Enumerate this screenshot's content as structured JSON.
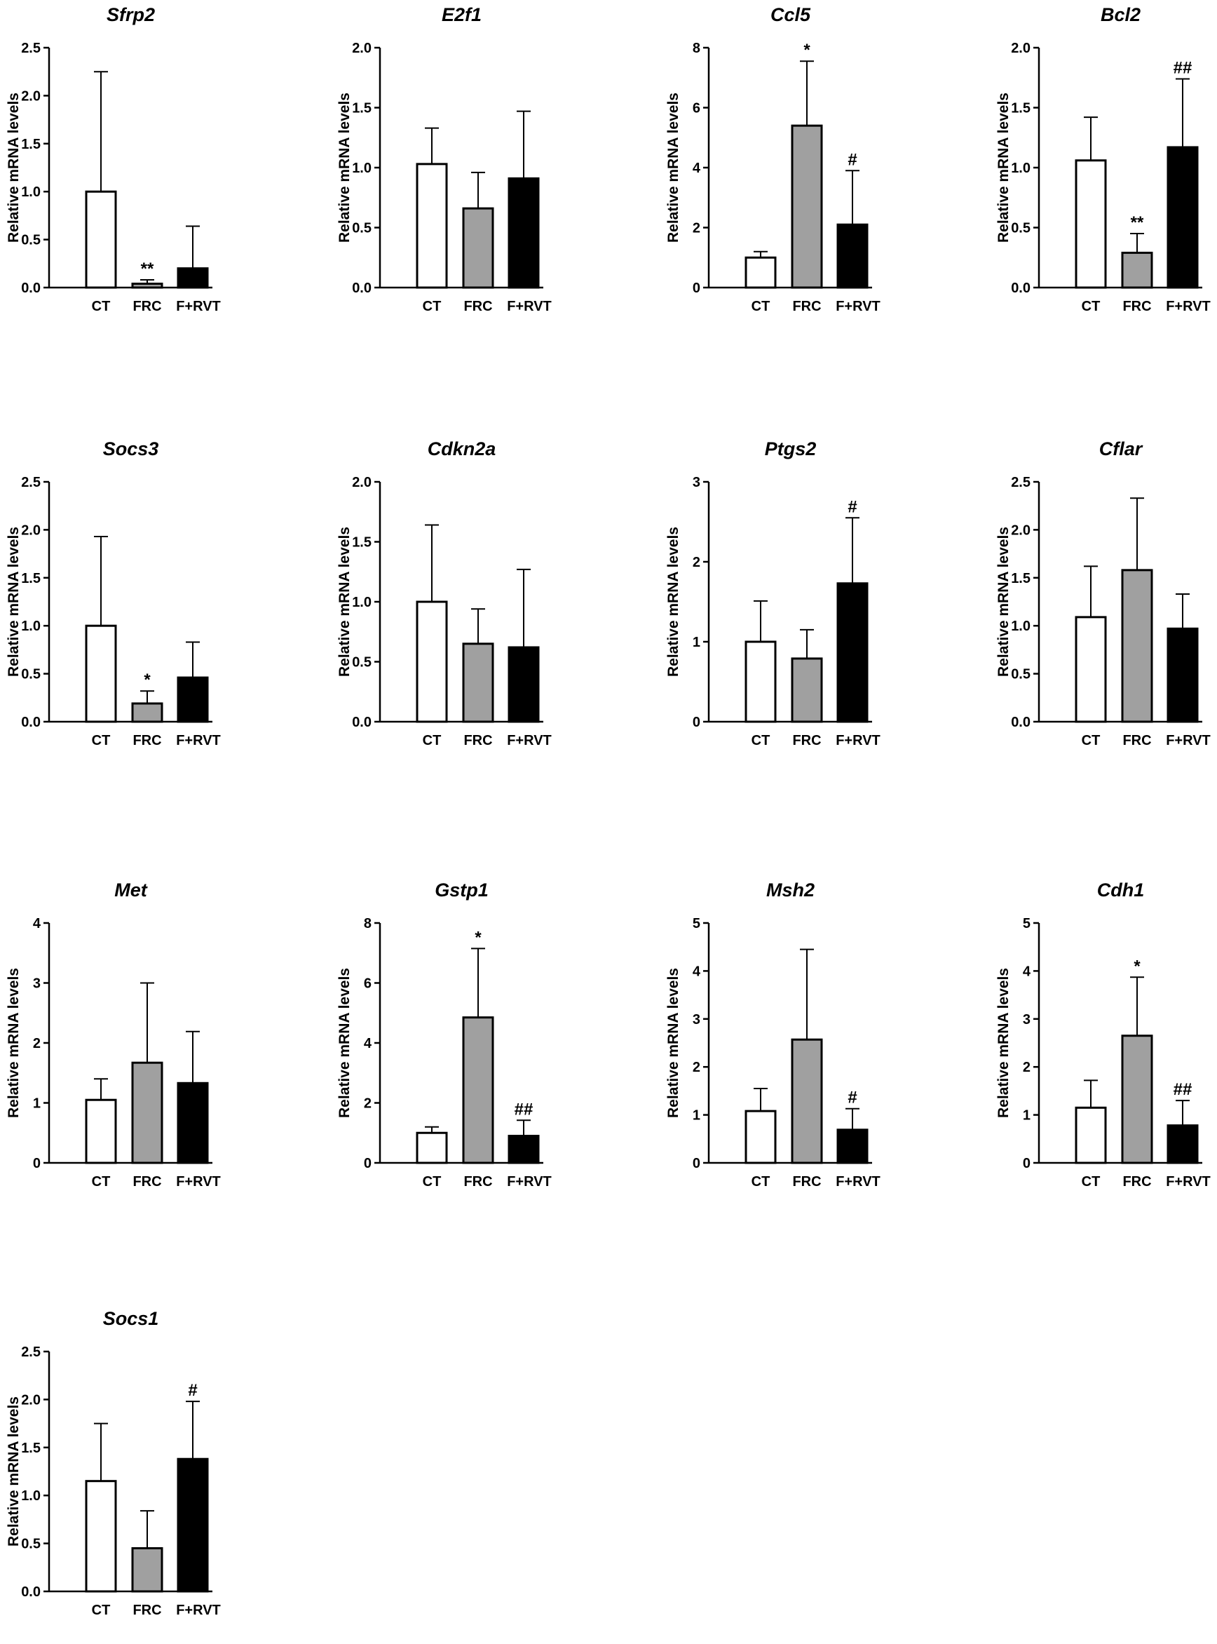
{
  "chart_data": [
    {
      "type": "bar",
      "title": "Sfrp2",
      "ylabel": "Relative mRNA levels",
      "categories": [
        "CT",
        "FRC",
        "F+RVT"
      ],
      "values": [
        1.0,
        0.04,
        0.2
      ],
      "error_upper": [
        2.25,
        0.08,
        0.64
      ],
      "annotations": [
        "",
        "**",
        ""
      ],
      "ylim": [
        0,
        2.5
      ],
      "yticks": [
        "0.0",
        "0.5",
        "1.0",
        "1.5",
        "2.0",
        "2.5"
      ],
      "colors": [
        "#ffffff",
        "#a0a0a0",
        "#000000"
      ]
    },
    {
      "type": "bar",
      "title": "E2f1",
      "ylabel": "Relative mRNA levels",
      "categories": [
        "CT",
        "FRC",
        "F+RVT"
      ],
      "values": [
        1.03,
        0.66,
        0.91
      ],
      "error_upper": [
        1.33,
        0.96,
        1.47
      ],
      "annotations": [
        "",
        "",
        ""
      ],
      "ylim": [
        0,
        2.0
      ],
      "yticks": [
        "0.0",
        "0.5",
        "1.0",
        "1.5",
        "2.0"
      ],
      "colors": [
        "#ffffff",
        "#a0a0a0",
        "#000000"
      ]
    },
    {
      "type": "bar",
      "title": "Ccl5",
      "ylabel": "Relative mRNA levels",
      "categories": [
        "CT",
        "FRC",
        "F+RVT"
      ],
      "values": [
        1.0,
        5.4,
        2.1
      ],
      "error_upper": [
        1.2,
        7.55,
        3.9
      ],
      "annotations": [
        "",
        "*",
        "#"
      ],
      "ylim": [
        0,
        8
      ],
      "yticks": [
        "0",
        "2",
        "4",
        "6",
        "8"
      ],
      "colors": [
        "#ffffff",
        "#a0a0a0",
        "#000000"
      ]
    },
    {
      "type": "bar",
      "title": "Bcl2",
      "ylabel": "Relative mRNA levels",
      "categories": [
        "CT",
        "FRC",
        "F+RVT"
      ],
      "values": [
        1.06,
        0.29,
        1.17
      ],
      "error_upper": [
        1.42,
        0.45,
        1.74
      ],
      "annotations": [
        "",
        "**",
        "##"
      ],
      "ylim": [
        0,
        2.0
      ],
      "yticks": [
        "0.0",
        "0.5",
        "1.0",
        "1.5",
        "2.0"
      ],
      "colors": [
        "#ffffff",
        "#a0a0a0",
        "#000000"
      ]
    },
    {
      "type": "bar",
      "title": "Socs3",
      "ylabel": "Relative mRNA levels",
      "categories": [
        "CT",
        "FRC",
        "F+RVT"
      ],
      "values": [
        1.0,
        0.19,
        0.46
      ],
      "error_upper": [
        1.93,
        0.32,
        0.83
      ],
      "annotations": [
        "",
        "*",
        ""
      ],
      "ylim": [
        0,
        2.5
      ],
      "yticks": [
        "0.0",
        "0.5",
        "1.0",
        "1.5",
        "2.0",
        "2.5"
      ],
      "colors": [
        "#ffffff",
        "#a0a0a0",
        "#000000"
      ]
    },
    {
      "type": "bar",
      "title": "Cdkn2a",
      "ylabel": "Relative mRNA levels",
      "categories": [
        "CT",
        "FRC",
        "F+RVT"
      ],
      "values": [
        1.0,
        0.65,
        0.62
      ],
      "error_upper": [
        1.64,
        0.94,
        1.27
      ],
      "annotations": [
        "",
        "",
        ""
      ],
      "ylim": [
        0,
        2.0
      ],
      "yticks": [
        "0.0",
        "0.5",
        "1.0",
        "1.5",
        "2.0"
      ],
      "colors": [
        "#ffffff",
        "#a0a0a0",
        "#000000"
      ]
    },
    {
      "type": "bar",
      "title": "Ptgs2",
      "ylabel": "Relative mRNA levels",
      "categories": [
        "CT",
        "FRC",
        "F+RVT"
      ],
      "values": [
        1.0,
        0.79,
        1.73
      ],
      "error_upper": [
        1.51,
        1.15,
        2.55
      ],
      "annotations": [
        "",
        "",
        "#"
      ],
      "ylim": [
        0,
        3
      ],
      "yticks": [
        "0",
        "1",
        "2",
        "3"
      ],
      "colors": [
        "#ffffff",
        "#a0a0a0",
        "#000000"
      ]
    },
    {
      "type": "bar",
      "title": "Cflar",
      "ylabel": "Relative mRNA levels",
      "categories": [
        "CT",
        "FRC",
        "F+RVT"
      ],
      "values": [
        1.09,
        1.58,
        0.97
      ],
      "error_upper": [
        1.62,
        2.33,
        1.33
      ],
      "annotations": [
        "",
        "",
        ""
      ],
      "ylim": [
        0,
        2.5
      ],
      "yticks": [
        "0.0",
        "0.5",
        "1.0",
        "1.5",
        "2.0",
        "2.5"
      ],
      "colors": [
        "#ffffff",
        "#a0a0a0",
        "#000000"
      ]
    },
    {
      "type": "bar",
      "title": "Met",
      "ylabel": "Relative mRNA levels",
      "categories": [
        "CT",
        "FRC",
        "F+RVT"
      ],
      "values": [
        1.05,
        1.67,
        1.33
      ],
      "error_upper": [
        1.4,
        3.0,
        2.19
      ],
      "annotations": [
        "",
        "",
        ""
      ],
      "ylim": [
        0,
        4
      ],
      "yticks": [
        "0",
        "1",
        "2",
        "3",
        "4"
      ],
      "colors": [
        "#ffffff",
        "#a0a0a0",
        "#000000"
      ]
    },
    {
      "type": "bar",
      "title": "Gstp1",
      "ylabel": "Relative mRNA levels",
      "categories": [
        "CT",
        "FRC",
        "F+RVT"
      ],
      "values": [
        1.0,
        4.85,
        0.9
      ],
      "error_upper": [
        1.2,
        7.15,
        1.42
      ],
      "annotations": [
        "",
        "*",
        "##"
      ],
      "ylim": [
        0,
        8
      ],
      "yticks": [
        "0",
        "2",
        "4",
        "6",
        "8"
      ],
      "colors": [
        "#ffffff",
        "#a0a0a0",
        "#000000"
      ]
    },
    {
      "type": "bar",
      "title": "Msh2",
      "ylabel": "Relative mRNA levels",
      "categories": [
        "CT",
        "FRC",
        "F+RVT"
      ],
      "values": [
        1.08,
        2.57,
        0.69
      ],
      "error_upper": [
        1.55,
        4.45,
        1.13
      ],
      "annotations": [
        "",
        "",
        "#"
      ],
      "ylim": [
        0,
        5
      ],
      "yticks": [
        "0",
        "1",
        "2",
        "3",
        "4",
        "5"
      ],
      "colors": [
        "#ffffff",
        "#a0a0a0",
        "#000000"
      ]
    },
    {
      "type": "bar",
      "title": "Cdh1",
      "ylabel": "Relative mRNA levels",
      "categories": [
        "CT",
        "FRC",
        "F+RVT"
      ],
      "values": [
        1.15,
        2.65,
        0.78
      ],
      "error_upper": [
        1.72,
        3.87,
        1.3
      ],
      "annotations": [
        "",
        "*",
        "##"
      ],
      "ylim": [
        0,
        5
      ],
      "yticks": [
        "0",
        "1",
        "2",
        "3",
        "4",
        "5"
      ],
      "colors": [
        "#ffffff",
        "#a0a0a0",
        "#000000"
      ]
    },
    {
      "type": "bar",
      "title": "Socs1",
      "ylabel": "Relative mRNA levels",
      "categories": [
        "CT",
        "FRC",
        "F+RVT"
      ],
      "values": [
        1.15,
        0.45,
        1.38
      ],
      "error_upper": [
        1.75,
        0.84,
        1.98
      ],
      "annotations": [
        "",
        "",
        "#"
      ],
      "ylim": [
        0,
        2.5
      ],
      "yticks": [
        "0.0",
        "0.5",
        "1.0",
        "1.5",
        "2.0",
        "2.5"
      ],
      "colors": [
        "#ffffff",
        "#a0a0a0",
        "#000000"
      ]
    }
  ]
}
